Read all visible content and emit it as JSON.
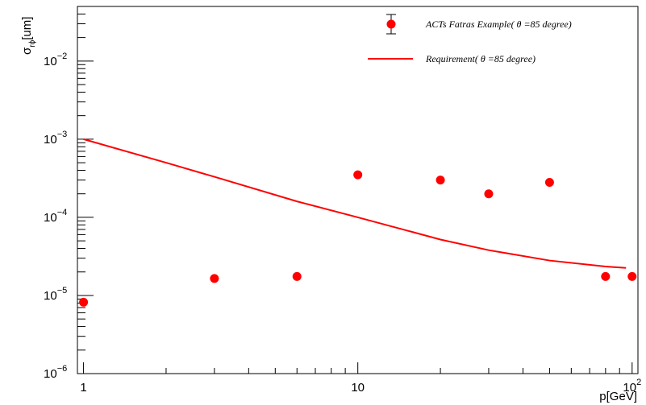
{
  "chart_data": {
    "type": "scatter",
    "x_scale": "log",
    "y_scale": "log",
    "xlim": [
      0.95,
      105
    ],
    "ylim": [
      1e-06,
      0.05
    ],
    "x_ticks": [
      {
        "value": 1,
        "label": "1"
      },
      {
        "value": 10,
        "label": "10"
      },
      {
        "value": 100,
        "label_base": "10",
        "label_exp": "2"
      }
    ],
    "y_ticks": [
      {
        "value": 1e-06,
        "label_base": "10",
        "label_exp": "−6"
      },
      {
        "value": 1e-05,
        "label_base": "10",
        "label_exp": "−5"
      },
      {
        "value": 0.0001,
        "label_base": "10",
        "label_exp": "−4"
      },
      {
        "value": 0.001,
        "label_base": "10",
        "label_exp": "−3"
      },
      {
        "value": 0.01,
        "label_base": "10",
        "label_exp": "−2"
      }
    ],
    "xlabel": "p[GeV]",
    "ylabel": {
      "main": "σ",
      "sub": "rϕ",
      "unit": "[um]"
    },
    "colors": {
      "series": "#ff0000",
      "axis": "#000000"
    },
    "series": [
      {
        "name": "ACTs Fatras Example(     θ =85 degree)",
        "kind": "markers",
        "x": [
          1,
          3,
          6,
          10,
          20,
          30,
          50,
          80,
          100
        ],
        "y": [
          8.2e-06,
          1.65e-05,
          1.75e-05,
          0.00035,
          0.0003,
          0.0002,
          0.00028,
          1.75e-05,
          1.75e-05
        ]
      },
      {
        "name": "Requirement(   θ =85 degree)",
        "kind": "line",
        "x": [
          1,
          2,
          3,
          6,
          10,
          20,
          30,
          50,
          80,
          95
        ],
        "y": [
          0.001,
          0.0005,
          0.00033,
          0.00016,
          0.0001,
          5.2e-05,
          3.8e-05,
          2.8e-05,
          2.35e-05,
          2.25e-05
        ]
      }
    ]
  }
}
